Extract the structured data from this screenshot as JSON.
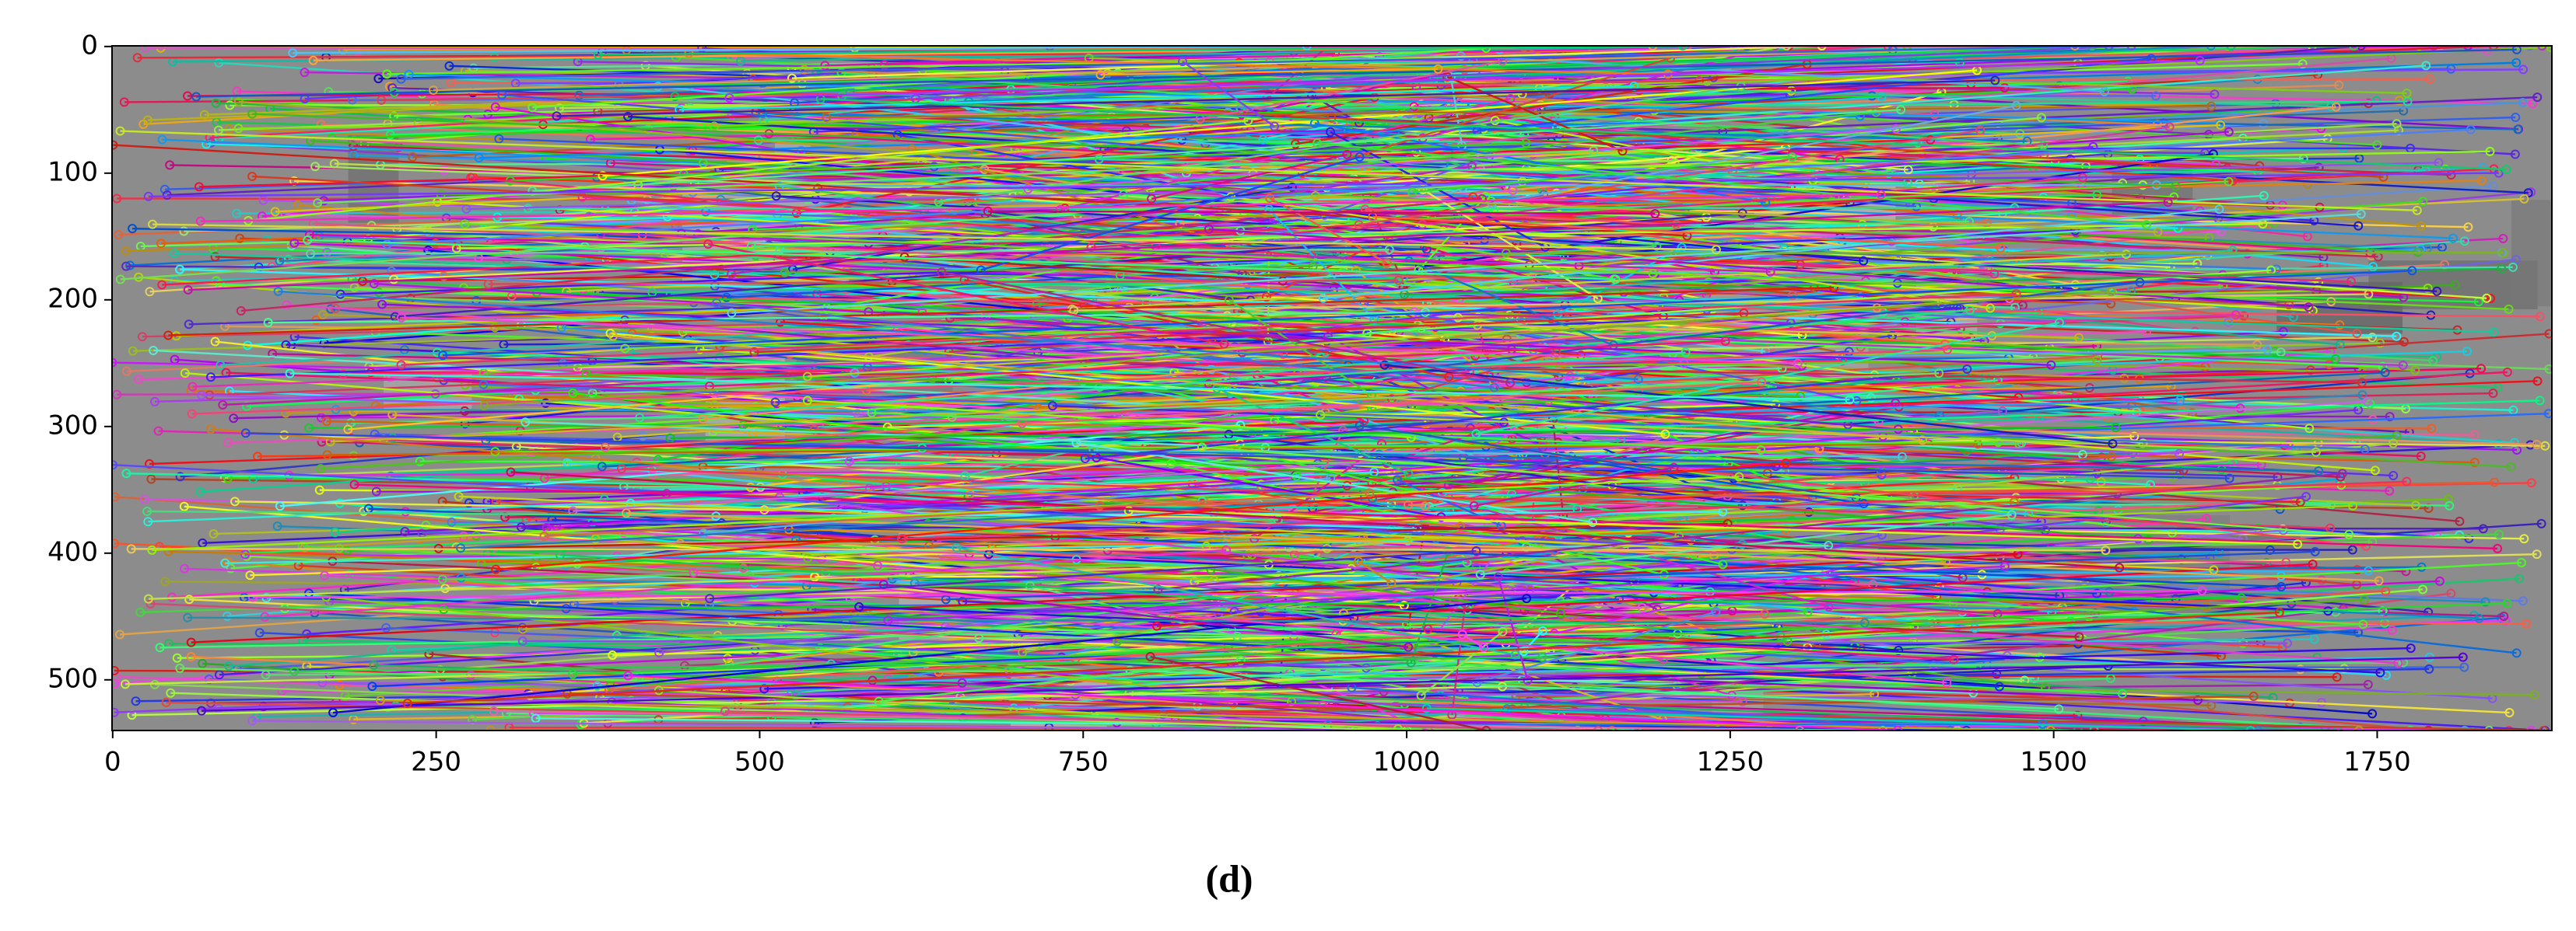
{
  "chart_data": {
    "type": "image",
    "caption": "(d)",
    "xlim": [
      -0.5,
      1885
    ],
    "ylim": [
      -0.5,
      540
    ],
    "y_inverted": true,
    "xticks": [
      0,
      250,
      500,
      750,
      1000,
      1250,
      1500,
      1750
    ],
    "yticks": [
      0,
      100,
      200,
      300,
      400,
      500
    ]
  }
}
